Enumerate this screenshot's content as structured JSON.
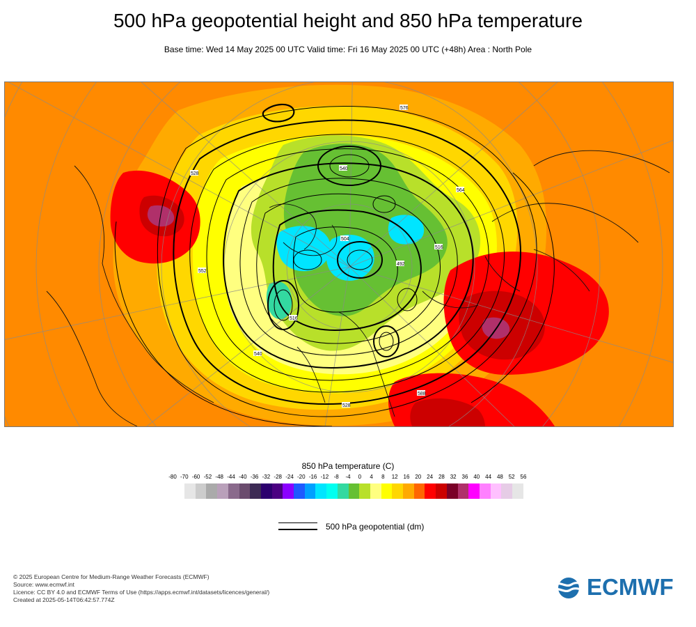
{
  "header": {
    "title": "500 hPa geopotential height and 850 hPa temperature",
    "subtitle": "Base time: Wed 14 May 2025 00 UTC Valid time: Fri 16 May 2025 00 UTC (+48h) Area : North Pole"
  },
  "map": {
    "background_color": "#ff8a00",
    "contour_color": "#000000",
    "contour_labels": [
      "528",
      "552",
      "576",
      "540",
      "564",
      "516",
      "504",
      "492",
      "588",
      "516",
      "528",
      "540"
    ]
  },
  "legend": {
    "title": "850 hPa temperature (C)",
    "scale_labels": [
      "-80",
      "-70",
      "-60",
      "-52",
      "-48",
      "-44",
      "-40",
      "-36",
      "-32",
      "-28",
      "-24",
      "-20",
      "-16",
      "-12",
      "-8",
      "-4",
      "0",
      "4",
      "8",
      "12",
      "16",
      "20",
      "24",
      "28",
      "32",
      "36",
      "40",
      "44",
      "48",
      "52",
      "56"
    ],
    "colors": [
      "#e6e6e6",
      "#cccccc",
      "#aaaaaa",
      "#b9a0ba",
      "#8a6a8c",
      "#6b4c6e",
      "#3d2b55",
      "#2c006e",
      "#4b0082",
      "#8b00ff",
      "#1e5aff",
      "#00a0ff",
      "#00e5ff",
      "#00fff0",
      "#33d9a0",
      "#66c033",
      "#b8e02a",
      "#ffff80",
      "#ffff00",
      "#ffd700",
      "#ffaa00",
      "#ff6600",
      "#ff0000",
      "#cc0000",
      "#7a0028",
      "#b0306a",
      "#ff00ff",
      "#ff80ff",
      "#ffc0ff",
      "#e6cce6",
      "#e6e6e6"
    ],
    "line_label": "500 hPa geopotential (dm)"
  },
  "credits": {
    "copyright": "© 2025 European Centre for Medium-Range Weather Forecasts (ECMWF)",
    "source": "Source: www.ecmwf.int",
    "licence": "Licence: CC BY 4.0 and ECMWF Terms of Use (https://apps.ecmwf.int/datasets/licences/general/)",
    "created": "Created at 2025-05-14T06:42:57.774Z"
  },
  "logo": {
    "text": "ECMWF",
    "color": "#1d6fae"
  }
}
